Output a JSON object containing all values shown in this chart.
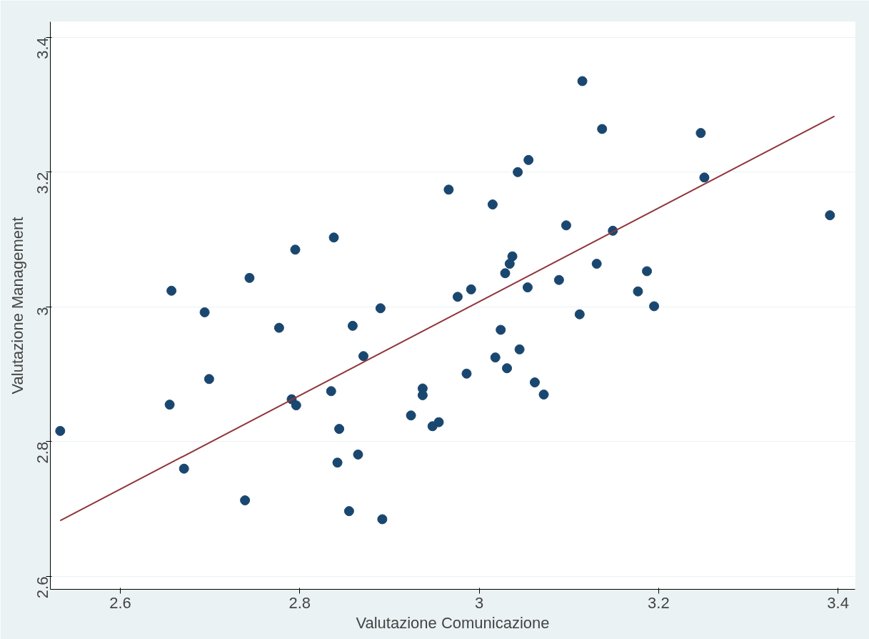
{
  "chart_data": {
    "type": "scatter",
    "xlabel": "Valutazione Comunicazione",
    "ylabel": "Valutazione Management",
    "xlim": [
      2.522,
      3.419
    ],
    "ylim": [
      2.581,
      3.423
    ],
    "xticks": [
      2.6,
      2.8,
      3,
      3.2,
      3.4
    ],
    "yticks": [
      2.6,
      2.8,
      3,
      3.2,
      3.4
    ],
    "grid": "y",
    "series": [
      {
        "marker": "circle",
        "color": "#1a476f",
        "x": [
          2.533,
          2.657,
          2.655,
          2.694,
          2.699,
          2.671,
          2.744,
          2.739,
          2.777,
          2.795,
          2.791,
          2.796,
          2.835,
          2.844,
          2.842,
          2.838,
          2.859,
          2.871,
          2.865,
          2.855,
          2.89,
          2.892,
          2.924,
          2.937,
          2.937,
          2.948,
          2.955,
          2.966,
          2.976,
          2.986,
          2.991,
          3.015,
          3.018,
          3.024,
          3.029,
          3.031,
          3.034,
          3.037,
          3.043,
          3.045,
          3.054,
          3.055,
          3.062,
          3.072,
          3.089,
          3.097,
          3.112,
          3.115,
          3.131,
          3.137,
          3.149,
          3.177,
          3.187,
          3.195,
          3.247,
          3.251,
          3.391
        ],
        "values": [
          2.816,
          3.024,
          2.855,
          2.992,
          2.893,
          2.76,
          3.043,
          2.713,
          2.969,
          3.085,
          2.863,
          2.854,
          2.875,
          2.819,
          2.769,
          3.103,
          2.972,
          2.927,
          2.781,
          2.697,
          2.998,
          2.685,
          2.839,
          2.879,
          2.869,
          2.823,
          2.829,
          3.174,
          3.015,
          2.901,
          3.026,
          3.152,
          2.925,
          2.966,
          3.05,
          2.909,
          3.064,
          3.075,
          3.2,
          2.937,
          3.029,
          3.218,
          2.888,
          2.87,
          3.04,
          3.121,
          2.989,
          3.335,
          3.064,
          3.264,
          3.113,
          3.023,
          3.053,
          3.001,
          3.258,
          3.192,
          3.136
        ]
      },
      {
        "type": "line",
        "marker": "none",
        "color": "#90353b",
        "x": [
          2.533,
          3.396
        ],
        "values": [
          2.683,
          3.283
        ]
      }
    ]
  }
}
